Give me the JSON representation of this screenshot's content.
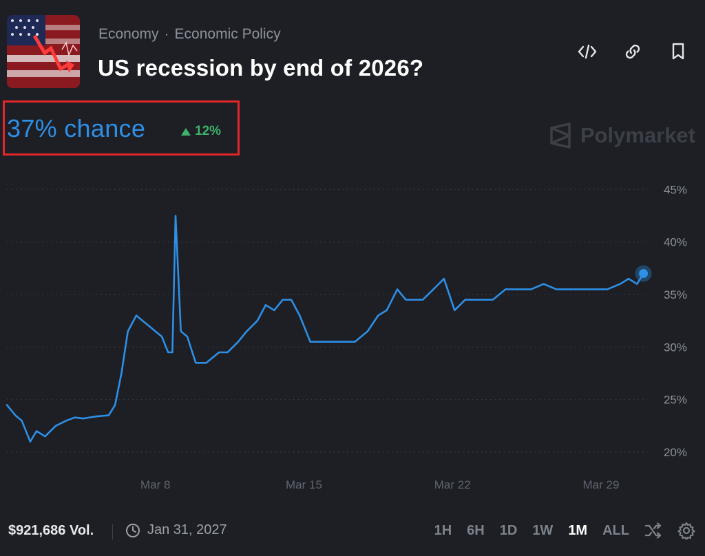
{
  "header": {
    "breadcrumb": [
      "Economy",
      "Economic Policy"
    ],
    "separator": "·",
    "title": "US recession by end of 2026?",
    "thumbnail_icon": "us-flag-market-crash-thumbnail"
  },
  "actions": [
    {
      "name": "embed-icon"
    },
    {
      "name": "link-icon"
    },
    {
      "name": "bookmark-icon"
    }
  ],
  "odds": {
    "value": "37% chance",
    "delta": "12%",
    "delta_direction": "up",
    "color": "#2e8fe6",
    "delta_color": "#3fb26b"
  },
  "brand": {
    "name": "Polymarket",
    "icon": "polymarket-logo-icon"
  },
  "chart_data": {
    "type": "line",
    "title": "",
    "xlabel": "",
    "ylabel": "",
    "x_ticks": [
      "Mar 8",
      "Mar 15",
      "Mar 22",
      "Mar 29"
    ],
    "y_ticks": [
      "20%",
      "25%",
      "30%",
      "35%",
      "40%",
      "45%"
    ],
    "ylim": [
      18.5,
      46
    ],
    "xlim": [
      1,
      31.5
    ],
    "grid": true,
    "color": "#2e8fe6",
    "series": [
      {
        "x": [
          1.0,
          1.4,
          1.7,
          2.1,
          2.4,
          2.8,
          3.3,
          3.8,
          4.2,
          4.6,
          5.2,
          5.8,
          6.1,
          6.4,
          6.7,
          7.1,
          7.4,
          7.7,
          8.0,
          8.3,
          8.6,
          8.8,
          8.95,
          9.2,
          9.5,
          9.9,
          10.4,
          11.0,
          11.4,
          11.9,
          12.3,
          12.8,
          13.2,
          13.6,
          14.0,
          14.4,
          14.8,
          15.3,
          15.7,
          16.2,
          16.8,
          17.4,
          18.0,
          18.5,
          18.9,
          19.4,
          19.8,
          20.2,
          20.6,
          21.1,
          21.6,
          22.1,
          22.6,
          22.9,
          23.3,
          23.9,
          24.5,
          25.1,
          25.7,
          26.3,
          26.9,
          27.5,
          28.1,
          28.7,
          29.3,
          29.9,
          30.3,
          30.7,
          31.0
        ],
        "y": [
          24.5,
          23.5,
          23.0,
          21.0,
          22.0,
          21.5,
          22.5,
          23.0,
          23.3,
          23.2,
          23.4,
          23.5,
          24.5,
          27.5,
          31.5,
          33.0,
          32.5,
          32.0,
          31.5,
          31.0,
          29.5,
          29.5,
          42.5,
          31.5,
          31.0,
          28.5,
          28.5,
          29.5,
          29.5,
          30.5,
          31.5,
          32.5,
          34.0,
          33.5,
          34.5,
          34.5,
          33.0,
          30.5,
          30.5,
          30.5,
          30.5,
          30.5,
          31.5,
          33.0,
          33.5,
          35.5,
          34.5,
          34.5,
          34.5,
          35.5,
          36.5,
          33.5,
          34.5,
          34.5,
          34.5,
          34.5,
          35.5,
          35.5,
          35.5,
          36.0,
          35.5,
          35.5,
          35.5,
          35.5,
          35.5,
          36.0,
          36.5,
          36.0,
          37.0
        ]
      }
    ]
  },
  "footer": {
    "volume": "$921,686 Vol.",
    "end_date": "Jan 31, 2027",
    "clock_icon": "clock-icon",
    "ranges": [
      "1H",
      "6H",
      "1D",
      "1W",
      "1M",
      "ALL"
    ],
    "active_range": "1M",
    "shuffle_icon": "shuffle-icon",
    "settings_icon": "gear-icon"
  }
}
